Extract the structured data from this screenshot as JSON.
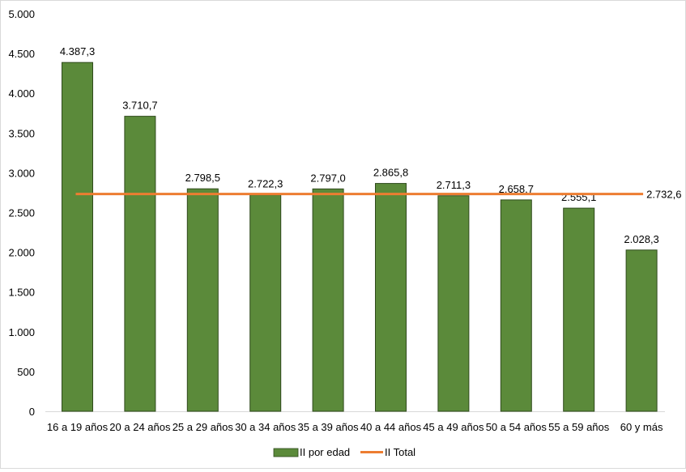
{
  "chart_data": {
    "type": "bar",
    "title": "",
    "xlabel": "",
    "ylabel": "",
    "ylim": [
      0,
      5000
    ],
    "yticks": [
      0,
      500,
      1000,
      1500,
      2000,
      2500,
      3000,
      3500,
      4000,
      4500,
      5000
    ],
    "ytick_labels": [
      "0",
      "500",
      "1.000",
      "1.500",
      "2.000",
      "2.500",
      "3.000",
      "3.500",
      "4.000",
      "4.500",
      "5.000"
    ],
    "categories": [
      "16 a 19 años",
      "20 a 24 años",
      "25 a 29 años",
      "30 a 34 años",
      "35 a 39 años",
      "40 a 44 años",
      "45 a 49 años",
      "50 a 54 años",
      "55 a 59 años",
      "60 y más"
    ],
    "series": [
      {
        "name": "II por edad",
        "type": "bar",
        "color": "#5b8a3a",
        "values": [
          4387.3,
          3710.7,
          2798.5,
          2722.3,
          2797.0,
          2865.8,
          2711.3,
          2658.7,
          2555.1,
          2028.3
        ],
        "labels": [
          "4.387,3",
          "3.710,7",
          "2.798,5",
          "2.722,3",
          "2.797,0",
          "2.865,8",
          "2.711,3",
          "2.658,7",
          "2.555,1",
          "2.028,3"
        ]
      },
      {
        "name": "II Total",
        "type": "line",
        "color": "#ed7d31",
        "values": [
          2732.6,
          2732.6,
          2732.6,
          2732.6,
          2732.6,
          2732.6,
          2732.6,
          2732.6,
          2732.6,
          2732.6
        ],
        "end_label": "2.732,6"
      }
    ],
    "grid": false,
    "legend_position": "bottom"
  },
  "legend": {
    "bar_label": "II por edad",
    "line_label": "II Total"
  }
}
